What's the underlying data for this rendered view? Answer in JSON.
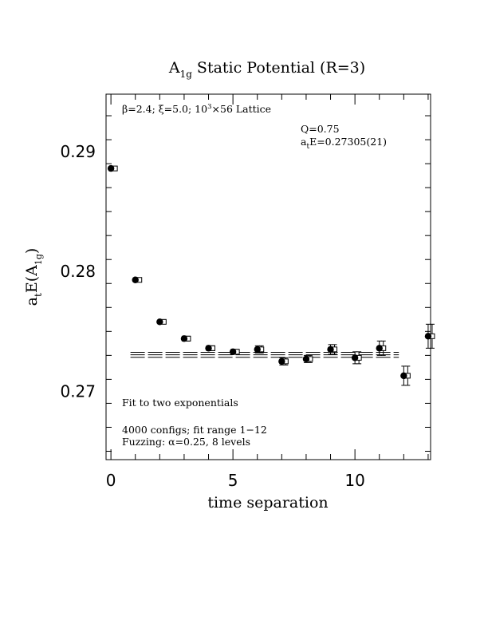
{
  "chart_data": {
    "type": "scatter",
    "title": "A",
    "title_sub": "1g",
    "title_rest": " Static Potential (R=3)",
    "xlabel": "time separation",
    "ylabel": {
      "a": "a",
      "t": "t",
      "e": "E(A",
      "sub1g": "1g",
      "close": ")"
    },
    "xlim": [
      -0.2,
      13.1
    ],
    "ylim": [
      0.2643,
      0.2948
    ],
    "x_ticks": [
      0,
      5,
      10
    ],
    "y_ticks": [
      0.27,
      0.28,
      0.29
    ],
    "x_tick_labels": [
      "0",
      "5",
      "10"
    ],
    "y_tick_labels": [
      "0.27",
      "0.28",
      "0.29"
    ],
    "annotations": {
      "lattice": {
        "beta": "β=2.4; ξ=5.0; 10",
        "exp": "3",
        "rest": "×56 Lattice"
      },
      "q": "Q=0.75",
      "energy": {
        "a": "a",
        "t": "t",
        "rest": "E=0.27305(21)"
      },
      "fit": "Fit to two exponentials",
      "configs": "4000 configs; fit range 1−12",
      "fuzzing": "Fuzzing: α=0.25, 8 levels"
    },
    "series": [
      {
        "marker": "filled-circle",
        "x": [
          0,
          1,
          2,
          3,
          4,
          5,
          6,
          7,
          8,
          9,
          10,
          11,
          12,
          13
        ],
        "y": [
          0.2886,
          0.2793,
          0.2758,
          0.2744,
          0.2736,
          0.2733,
          0.2735,
          0.2725,
          0.2727,
          0.2735,
          0.2728,
          0.2736,
          0.2713,
          0.2746
        ],
        "err": [
          0.0001,
          0.0001,
          0.0001,
          0.0002,
          0.0002,
          0.0002,
          0.0003,
          0.0003,
          0.0003,
          0.0004,
          0.0005,
          0.0006,
          0.0008,
          0.001
        ]
      },
      {
        "marker": "open-square",
        "x": [
          0,
          1,
          2,
          3,
          4,
          5,
          6,
          7,
          8,
          9,
          10,
          11,
          12,
          13
        ],
        "y": [
          0.2886,
          0.2793,
          0.2758,
          0.2744,
          0.2736,
          0.2733,
          0.2735,
          0.2725,
          0.2727,
          0.2735,
          0.2728,
          0.2736,
          0.2713,
          0.2746
        ],
        "err": [
          0.0001,
          0.0001,
          0.0001,
          0.0002,
          0.0002,
          0.0002,
          0.0003,
          0.0003,
          0.0003,
          0.0004,
          0.0005,
          0.0006,
          0.0008,
          0.001
        ]
      }
    ],
    "fit": {
      "x_range": [
        0.8,
        11.8
      ],
      "value": 0.27305,
      "error": 0.00021
    }
  }
}
